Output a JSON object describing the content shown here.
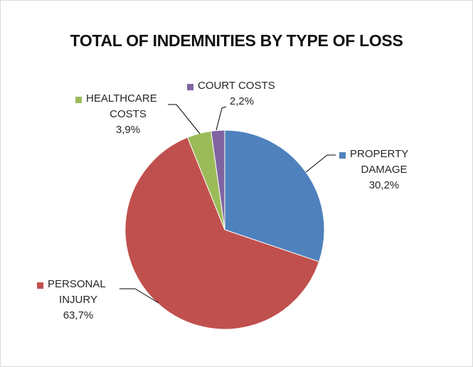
{
  "chart_data": {
    "type": "pie",
    "title": "TOTAL OF INDEMNITIES BY TYPE OF LOSS",
    "slices": [
      {
        "label_lines": [
          "PROPERTY",
          "DAMAGE"
        ],
        "value": 30.2,
        "value_label": "30,2%",
        "color": "#4F81BD"
      },
      {
        "label_lines": [
          "PERSONAL",
          "INJURY"
        ],
        "value": 63.7,
        "value_label": "63,7%",
        "color": "#C0504D"
      },
      {
        "label_lines": [
          "HEALTHCARE",
          "COSTS"
        ],
        "value": 3.9,
        "value_label": "3,9%",
        "color": "#9BBB59"
      },
      {
        "label_lines": [
          "COURT COSTS"
        ],
        "value": 2.2,
        "value_label": "2,2%",
        "color": "#8064A2"
      }
    ],
    "legend": "none (data labels with leader lines)",
    "start_angle": "12 o'clock, clockwise"
  }
}
